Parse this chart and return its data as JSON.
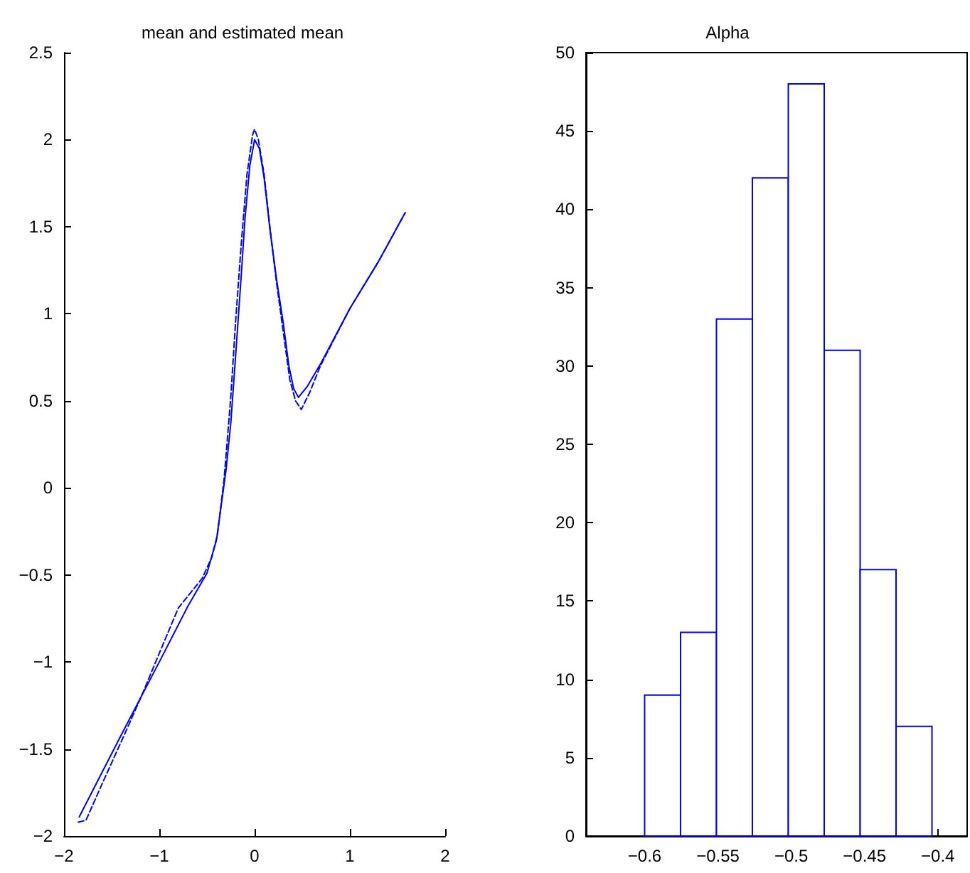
{
  "chart_data": [
    {
      "type": "line",
      "title": "mean and estimated mean",
      "marker": "none",
      "xlim": [
        -2,
        2
      ],
      "xticks": [
        -2,
        -1,
        0,
        1,
        2
      ],
      "ylim": [
        -2,
        2.5
      ],
      "yticks": [
        -2,
        -1.5,
        -1,
        -0.5,
        0,
        0.5,
        1,
        1.5,
        2,
        2.5
      ],
      "series": [
        {
          "color": "#0000ff",
          "line_style": "solid",
          "x": [
            -1.84,
            -1.4,
            -1.0,
            -0.7,
            -0.5,
            -0.4,
            -0.3,
            -0.25,
            -0.2,
            -0.14,
            -0.1,
            -0.05,
            0,
            0.05,
            0.1,
            0.16,
            0.23,
            0.3,
            0.36,
            0.41,
            0.46,
            0.55,
            0.7,
            1.0,
            1.3,
            1.58
          ],
          "values": [
            -1.89,
            -1.42,
            -1.0,
            -0.68,
            -0.49,
            -0.3,
            0.1,
            0.37,
            0.75,
            1.22,
            1.55,
            1.85,
            2.0,
            1.95,
            1.78,
            1.49,
            1.2,
            0.95,
            0.7,
            0.57,
            0.52,
            0.58,
            0.72,
            1.03,
            1.3,
            1.58
          ]
        },
        {
          "color": "#0000ff",
          "line_style": "dashed",
          "x": [
            -1.85,
            -1.77,
            -1.6,
            -1.36,
            -1.19,
            -1.0,
            -0.8,
            -0.55,
            -0.45,
            -0.39,
            -0.32,
            -0.25,
            -0.2,
            -0.14,
            -0.08,
            -0.02,
            0,
            0.04,
            0.1,
            0.16,
            0.23,
            0.3,
            0.37,
            0.43,
            0.49,
            0.58,
            0.69,
            1.0,
            1.3,
            1.58
          ],
          "values": [
            -1.92,
            -1.91,
            -1.7,
            -1.41,
            -1.2,
            -0.95,
            -0.69,
            -0.52,
            -0.4,
            -0.27,
            0.05,
            0.52,
            0.95,
            1.4,
            1.8,
            2.03,
            2.06,
            2.0,
            1.8,
            1.5,
            1.18,
            0.9,
            0.62,
            0.5,
            0.45,
            0.55,
            0.7,
            1.03,
            1.3,
            1.58
          ]
        }
      ]
    },
    {
      "type": "histogram",
      "title": "Alpha",
      "color": "#0000ff",
      "bins": [
        -0.6,
        -0.5755,
        -0.551,
        -0.5265,
        -0.502,
        -0.4775,
        -0.453,
        -0.4285,
        -0.404
      ],
      "values": [
        9,
        13,
        33,
        42,
        48,
        31,
        17,
        7
      ],
      "xlim": [
        -0.64,
        -0.38
      ],
      "xticks": [
        -0.6,
        -0.55,
        -0.5,
        -0.45,
        -0.4
      ],
      "ylim": [
        0,
        50
      ],
      "yticks": [
        0,
        5,
        10,
        15,
        20,
        25,
        30,
        35,
        40,
        45,
        50
      ]
    }
  ]
}
